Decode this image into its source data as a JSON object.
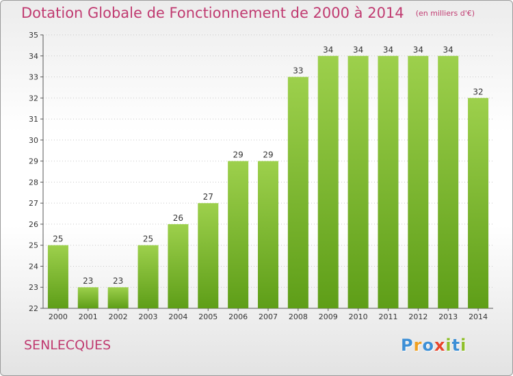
{
  "chart_data": {
    "type": "bar",
    "title": "Dotation Globale de Fonctionnement de 2000 à 2014",
    "unit_note": "(en milliers d'€)",
    "categories": [
      "2000",
      "2001",
      "2002",
      "2003",
      "2004",
      "2005",
      "2006",
      "2007",
      "2008",
      "2009",
      "2010",
      "2011",
      "2012",
      "2013",
      "2014"
    ],
    "values": [
      25,
      23,
      23,
      25,
      26,
      27,
      29,
      29,
      33,
      34,
      34,
      34,
      34,
      34,
      32
    ],
    "ylim": [
      22,
      35
    ],
    "yticks": [
      22,
      23,
      24,
      25,
      26,
      27,
      28,
      29,
      30,
      31,
      32,
      33,
      34,
      35
    ],
    "grid": "horizontal-dotted",
    "legend": "none",
    "colors": {
      "bar_top": "#9dd04c",
      "bar_bottom": "#5e9e18",
      "text_accent": "#c03a70"
    }
  },
  "municipality": "SENLECQUES",
  "logo": {
    "letters": [
      {
        "char": "P",
        "color": "#3c8fd6"
      },
      {
        "char": "r",
        "color": "#f0a021"
      },
      {
        "char": "o",
        "color": "#3c8fd6"
      },
      {
        "char": "x",
        "color": "#e8452c"
      },
      {
        "char": "i",
        "color": "#8fbf2a"
      },
      {
        "char": "t",
        "color": "#3c8fd6"
      },
      {
        "char": "i",
        "color": "#8fbf2a"
      }
    ]
  }
}
